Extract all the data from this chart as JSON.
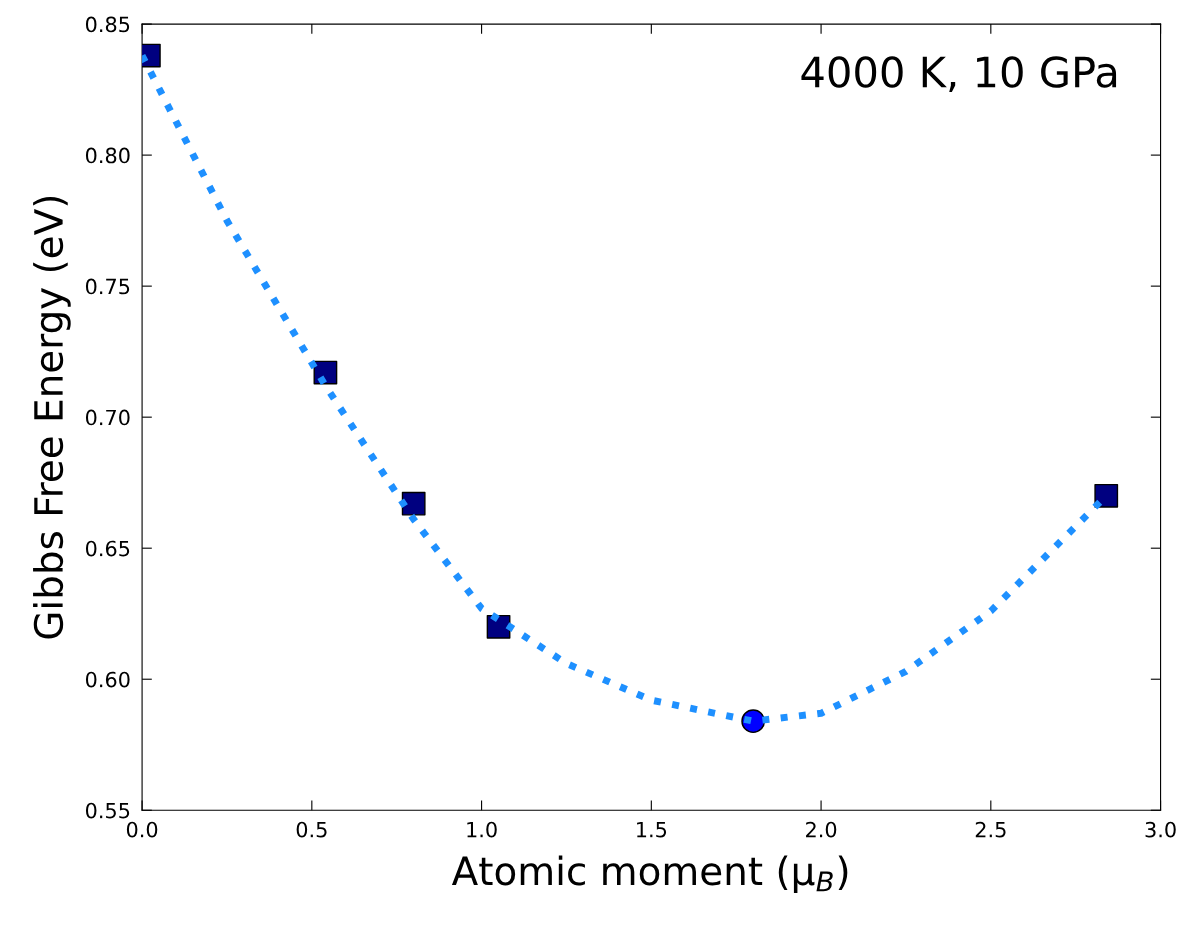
{
  "chart_data": {
    "type": "scatter",
    "xlabel": "Atomic moment (μ$_{B}$)",
    "ylabel": "Gibbs Free Energy (eV)",
    "annotations": [
      "4000 K, 10 GPa"
    ],
    "xlim": [
      0.0,
      3.0
    ],
    "ylim": [
      0.55,
      0.85
    ],
    "xticks": [
      {
        "value": 0,
        "label": "0.0"
      },
      {
        "value": 0.5,
        "label": "0.5"
      },
      {
        "value": 1,
        "label": "1.0"
      },
      {
        "value": 1.5,
        "label": "1.5"
      },
      {
        "value": 2,
        "label": "2.0"
      },
      {
        "value": 2.5,
        "label": "2.5"
      },
      {
        "value": 3,
        "label": "3.0"
      }
    ],
    "yticks": [
      {
        "value": 0.55,
        "label": "0.55"
      },
      {
        "value": 0.6,
        "label": "0.60"
      },
      {
        "value": 0.65,
        "label": "0.65"
      },
      {
        "value": 0.7,
        "label": "0.70"
      },
      {
        "value": 0.75,
        "label": "0.75"
      },
      {
        "value": 0.8,
        "label": "0.80"
      },
      {
        "value": 0.85,
        "label": "0.85"
      }
    ],
    "grid": false,
    "legend": false,
    "series": [
      {
        "type": "line",
        "line_style": "dotted",
        "marker": "none",
        "color": "#1e90ff",
        "x": [
          0,
          0.25,
          0.54,
          0.8,
          1.0,
          1.25,
          1.5,
          1.8,
          2.0,
          2.25,
          2.5,
          2.84
        ],
        "values": [
          0.838,
          0.775,
          0.712,
          0.661,
          0.627,
          0.606,
          0.592,
          0.584,
          0.587,
          0.603,
          0.626,
          0.67
        ]
      },
      {
        "marker": "square",
        "color": "#000080",
        "x": [
          0.02,
          0.54,
          0.8,
          1.05,
          2.84
        ],
        "values": [
          0.838,
          0.717,
          0.667,
          0.62,
          0.67
        ]
      },
      {
        "type": "scatter",
        "marker": "circle",
        "color": "#0000ff",
        "x": [
          1.8
        ],
        "values": [
          0.584
        ]
      }
    ]
  }
}
